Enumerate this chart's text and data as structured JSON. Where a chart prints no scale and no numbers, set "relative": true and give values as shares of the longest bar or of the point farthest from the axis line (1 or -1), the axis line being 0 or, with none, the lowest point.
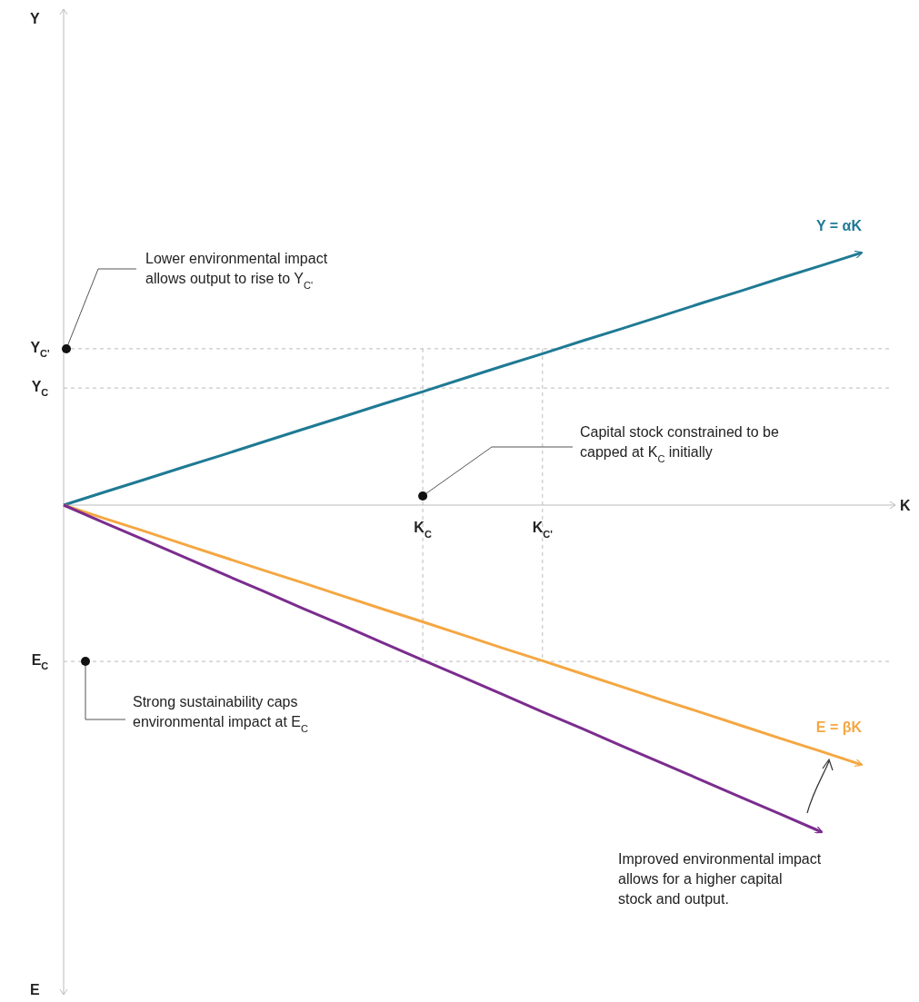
{
  "chart_data": {
    "type": "line",
    "relative": true,
    "xlabel": "K",
    "marker": "none",
    "line_style": "solid",
    "legend": false,
    "grid": false,
    "categories": [
      null,
      null,
      null,
      null,
      null,
      null,
      null,
      null,
      null,
      "K$_{C}$",
      null,
      null,
      "K$_{C'}$",
      null,
      null,
      null,
      null,
      null,
      null,
      null,
      null
    ],
    "series": [
      {
        "name": "Y = αK",
        "color": "#1f7a94",
        "values": [
          0,
          0.039,
          0.077,
          0.116,
          0.154,
          0.193,
          0.232,
          0.27,
          0.309,
          0.347,
          0.386,
          0.425,
          0.463,
          0.502,
          0.54,
          0.579,
          0.618,
          0.656,
          0.695,
          0.733,
          0.772
        ]
      },
      {
        "name": "E = βK",
        "color": "#f5a742",
        "values": [
          0,
          -0.04,
          -0.079,
          -0.119,
          -0.159,
          -0.199,
          -0.238,
          -0.278,
          -0.318,
          -0.357,
          -0.397,
          -0.437,
          -0.476,
          -0.516,
          -0.556,
          -0.596,
          -0.635,
          -0.675,
          -0.715,
          -0.754,
          -0.794
        ]
      },
      {
        "color": "#7b2d8e",
        "values": [
          0,
          -0.053,
          -0.105,
          -0.158,
          -0.211,
          -0.263,
          -0.316,
          -0.368,
          -0.421,
          -0.474,
          -0.526,
          -0.579,
          -0.632,
          -0.684,
          -0.737,
          -0.789,
          -0.842,
          -0.895,
          -0.947,
          -1,
          null
        ]
      }
    ],
    "ref_lines": [
      {
        "axis": "y",
        "value": 0.478,
        "label": "Y$_{C'}$",
        "color": "#bbbbbb",
        "line_style": "dashed"
      },
      {
        "axis": "y",
        "value": 0.358,
        "label": "Y$_{C}$",
        "color": "#bbbbbb",
        "line_style": "dashed"
      },
      {
        "axis": "y",
        "value": -0.478,
        "label": "E$_{C}$",
        "color": "#bbbbbb",
        "line_style": "dashed"
      },
      {
        "axis": "x",
        "value": "K$_{C}$",
        "color": "#bbbbbb",
        "line_style": "dashed"
      },
      {
        "axis": "x",
        "value": "K$_{C'}$",
        "color": "#bbbbbb",
        "line_style": "dashed"
      }
    ],
    "annotations": [
      "Lower environmental impact allows output to rise to Y$_{C'}$",
      {
        "text": "Capital stock constrained to be capped at K$_{C}$ initially",
        "x": "K$_{C}$",
        "y": 0.028
      },
      {
        "text": "Strong sustainability caps environmental impact at E$_{C}$",
        "y": -0.478
      },
      "Improved environmental impact allows for a higher capital stock and output.",
      "E",
      "Y"
    ]
  }
}
